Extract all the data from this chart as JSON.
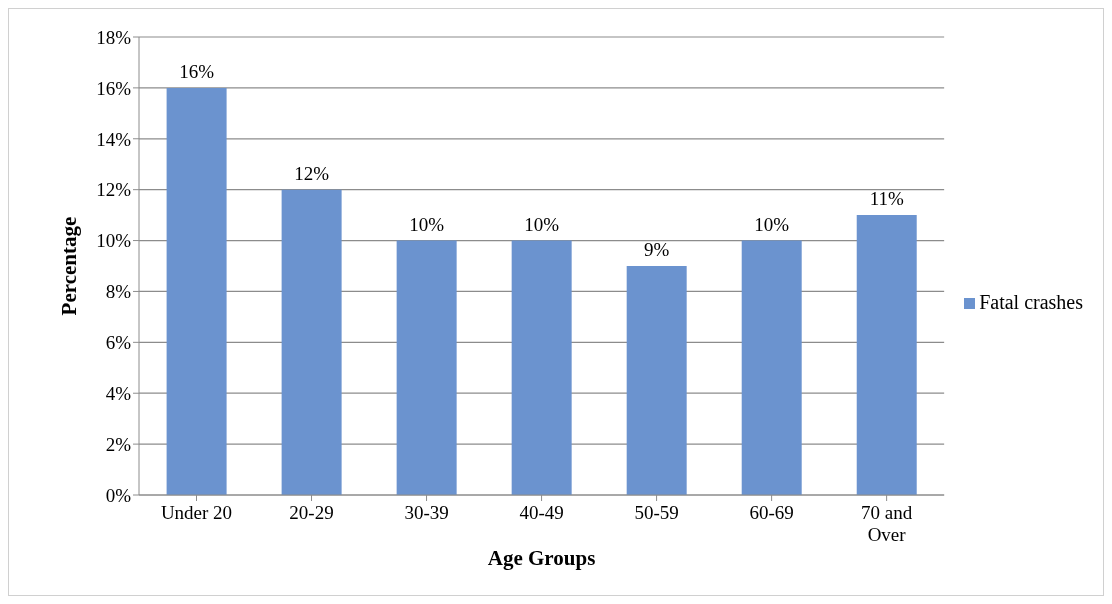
{
  "chart_data": {
    "type": "bar",
    "xlabel": "Age Groups",
    "ylabel": "Percentage",
    "categories": [
      "Under 20",
      "20-29",
      "30-39",
      "40-49",
      "50-59",
      "60-69",
      "70 and Over"
    ],
    "series": [
      {
        "name": "Fatal crashes",
        "color": "#6b93cf",
        "values": [
          16,
          12,
          10,
          10,
          9,
          10,
          11
        ],
        "value_labels": [
          "16%",
          "12%",
          "10%",
          "10%",
          "9%",
          "10%",
          "11%"
        ]
      }
    ],
    "ylim": [
      0,
      18
    ],
    "yticks": [
      {
        "value": 0,
        "label": "0%"
      },
      {
        "value": 2,
        "label": "2%"
      },
      {
        "value": 4,
        "label": "4%"
      },
      {
        "value": 6,
        "label": "6%"
      },
      {
        "value": 8,
        "label": "8%"
      },
      {
        "value": 10,
        "label": "10%"
      },
      {
        "value": 12,
        "label": "12%"
      },
      {
        "value": 14,
        "label": "14%"
      },
      {
        "value": 16,
        "label": "16%"
      },
      {
        "value": 18,
        "label": "18%"
      }
    ],
    "grid": "y",
    "legend": "right"
  }
}
